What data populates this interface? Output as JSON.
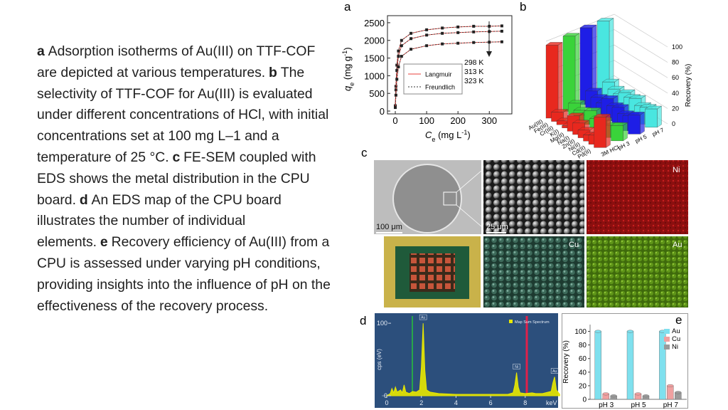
{
  "caption": [
    {
      "label": "a",
      "text": "Adsorption isotherms of Au(III) on TTF-COF are depicted at various temperatures."
    },
    {
      "label": "b",
      "text": "The selectivity of TTF-COF for Au(III) is evaluated under different concentrations of HCl, with initial concentrations set at 100 mg L–1 and a temperature of 25 °C."
    },
    {
      "label": "c",
      "text": "FE-SEM coupled with EDS shows the metal distribution in the CPU board."
    },
    {
      "label": "d",
      "text": "An EDS map of the CPU board illustrates the number of individual elements."
    },
    {
      "label": "e",
      "text": "Recovery efficiency of Au(III) from a CPU is assessed under varying pH conditions, providing insights into the influence of pH on the effectiveness of the recovery process."
    }
  ],
  "chart_data": [
    {
      "panel": "a",
      "type": "isotherm",
      "x_label": [
        {
          "text": "C",
          "style": "italic"
        },
        {
          "text": "e",
          "style": "sub"
        },
        {
          "text": " (mg L"
        },
        {
          "text": "-1",
          "style": "sup"
        },
        {
          "text": ")"
        }
      ],
      "y_label": [
        {
          "text": "q",
          "style": "italic"
        },
        {
          "text": "e",
          "style": "sub"
        },
        {
          "text": " (mg g"
        },
        {
          "text": "-1",
          "style": "sup"
        },
        {
          "text": ")"
        }
      ],
      "x": [
        0,
        2,
        5,
        10,
        20,
        50,
        100,
        150,
        200,
        250,
        300,
        340
      ],
      "series": [
        {
          "name": "298 K",
          "color": "#222222",
          "values": [
            150,
            700,
            1300,
            1700,
            2000,
            2200,
            2300,
            2350,
            2380,
            2400,
            2400,
            2410
          ]
        },
        {
          "name": "313 K",
          "color": "#222222",
          "values": [
            120,
            600,
            1150,
            1550,
            1850,
            2050,
            2150,
            2200,
            2220,
            2240,
            2250,
            2260
          ]
        },
        {
          "name": "323 K",
          "color": "#222222",
          "values": [
            100,
            450,
            900,
            1250,
            1550,
            1750,
            1850,
            1900,
            1920,
            1940,
            1950,
            1960
          ]
        }
      ],
      "fit_legend": [
        {
          "name": "Langmuir",
          "color": "#e8413b",
          "dash": "none"
        },
        {
          "name": "Freundlich",
          "color": "#333333",
          "dash": "2 2"
        }
      ],
      "xlim": [
        -25,
        372
      ],
      "xticks": [
        0,
        100,
        200,
        300
      ],
      "ylim": [
        -80,
        2700
      ],
      "yticks": [
        0,
        500,
        1000,
        1500,
        2000,
        2500
      ]
    },
    {
      "panel": "b",
      "type": "bar3d",
      "categories": [
        "Au(III)",
        "Fe(III)",
        "Cr(III)",
        "K(I)",
        "Mg(II)",
        "Na(I)",
        "Zn(II)",
        "Ni(II)",
        "Cd(II)",
        "Pd(II)"
      ],
      "series": [
        {
          "name": "3M HCl",
          "color": "#e8281e",
          "values": [
            95,
            12,
            5,
            3,
            20,
            15,
            10,
            8,
            12,
            40
          ]
        },
        {
          "name": "pH 3",
          "color": "#3ad33a",
          "values": [
            98,
            15,
            10,
            8,
            18,
            12,
            14,
            10,
            16,
            20
          ]
        },
        {
          "name": "pH 5",
          "color": "#1e1ee6",
          "values": [
            100,
            22,
            18,
            15,
            25,
            20,
            22,
            18,
            20,
            25
          ]
        },
        {
          "name": "pH 7",
          "color": "#49e6e0",
          "values": [
            100,
            25,
            20,
            18,
            24,
            22,
            25,
            20,
            22,
            24
          ]
        }
      ],
      "zlim": [
        0,
        100
      ],
      "zticks": [
        0,
        20,
        40,
        60,
        80,
        100
      ],
      "z_label": "Recovery (%)"
    },
    {
      "panel": "d",
      "type": "spectrum",
      "color": "#e8e800",
      "x": [
        0,
        0.2,
        0.3,
        0.4,
        0.5,
        0.6,
        0.8,
        0.9,
        1.0,
        1.1,
        1.3,
        1.5,
        1.7,
        1.9,
        2.0,
        2.1,
        2.2,
        2.3,
        2.5,
        3,
        4,
        5,
        6,
        7,
        7.3,
        7.4,
        7.5,
        7.6,
        7.7,
        8.0,
        8.4,
        8.6,
        9.0,
        9.5,
        9.6,
        9.7,
        9.8,
        10
      ],
      "values": [
        0,
        3,
        10,
        4,
        12,
        5,
        8,
        4,
        15,
        5,
        3,
        6,
        5,
        8,
        40,
        100,
        35,
        8,
        5,
        3,
        2,
        2,
        2,
        2,
        4,
        15,
        32,
        12,
        4,
        3,
        4,
        3,
        3,
        6,
        18,
        26,
        8,
        2
      ],
      "xlim": [
        -0.7,
        9.9
      ],
      "xticks": [
        0,
        2,
        4,
        6,
        8
      ],
      "x_unit": "keV",
      "ylim": [
        0,
        105
      ],
      "yticks": [
        0,
        100
      ],
      "y_label": "cps (eV)",
      "legend": "Map Sum Spectrum",
      "peaks": [
        {
          "x": 2.1,
          "label": "Au"
        },
        {
          "x": 7.5,
          "label": "Ni"
        },
        {
          "x": 9.7,
          "label": "Au"
        }
      ]
    },
    {
      "panel": "e",
      "type": "bar",
      "categories": [
        "pH 3",
        "pH 5",
        "pH 7"
      ],
      "series": [
        {
          "name": "Au",
          "color": "#7fe0ee",
          "values": [
            100,
            100,
            100
          ]
        },
        {
          "name": "Cu",
          "color": "#f0a0a0",
          "values": [
            8,
            8,
            20
          ]
        },
        {
          "name": "Ni",
          "color": "#9a9a9a",
          "values": [
            5,
            5,
            10
          ]
        }
      ],
      "ylim": [
        0,
        110
      ],
      "yticks": [
        0,
        20,
        40,
        60,
        80,
        100
      ],
      "y_label": "Recovery (%)"
    }
  ],
  "sem_panel": {
    "panel": "c",
    "labels": [
      "Ni",
      "Cu",
      "Au"
    ],
    "scale_bars": [
      "100 μm",
      "25 μm"
    ]
  }
}
